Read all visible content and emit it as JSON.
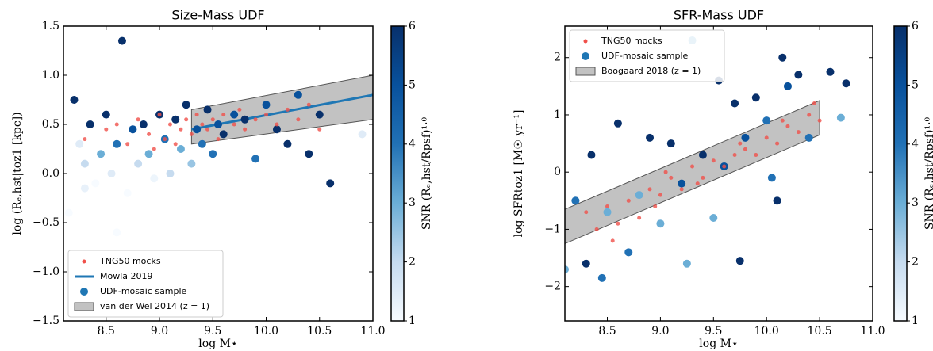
{
  "chart_data": [
    {
      "type": "scatter",
      "title": "Size-Mass UDF",
      "x_label": "log M⋆",
      "y_label": "log (Rₑ,hst|toz1 [kpc])",
      "xlim": [
        8.1,
        11.0
      ],
      "ylim": [
        -1.5,
        1.5
      ],
      "xticks": [
        8.5,
        {
          "value": 9,
          "label": "9.0"
        },
        9.5,
        {
          "value": 10,
          "label": "10.0"
        },
        10.5,
        {
          "value": 11,
          "label": "11.0"
        }
      ],
      "yticks": [
        {
          "value": -1.5,
          "label": "−1.5"
        },
        {
          "value": -1,
          "label": "−1.0"
        },
        {
          "value": -0.5,
          "label": "−0.5"
        },
        {
          "value": 0,
          "label": "0.0"
        },
        0.5,
        {
          "value": 1,
          "label": "1.0"
        },
        1.5
      ],
      "legend": "lower left",
      "series": [
        {
          "name": "UDF-mosaic sample",
          "color": "#1f77b4",
          "x": [
            8.15,
            8.2,
            8.25,
            8.3,
            8.35,
            8.4,
            8.45,
            8.5,
            8.55,
            8.6,
            8.65,
            8.7,
            8.75,
            8.8,
            8.85,
            8.9,
            8.95,
            9.0,
            9.05,
            9.1,
            9.15,
            9.2,
            9.25,
            9.3,
            9.35,
            9.4,
            9.45,
            9.5,
            9.55,
            9.6,
            9.7,
            9.8,
            9.9,
            10.0,
            10.1,
            10.2,
            10.3,
            10.4,
            10.5,
            10.6,
            10.9,
            8.6,
            8.3
          ],
          "values": [
            -0.4,
            0.75,
            0.3,
            0.1,
            0.5,
            -0.1,
            0.2,
            0.6,
            0.0,
            0.3,
            1.35,
            -0.2,
            0.45,
            0.1,
            0.5,
            0.2,
            -0.05,
            0.6,
            0.35,
            0.0,
            0.55,
            0.25,
            0.7,
            0.1,
            0.45,
            0.3,
            0.65,
            0.2,
            0.5,
            0.4,
            0.6,
            0.55,
            0.15,
            0.7,
            0.45,
            0.3,
            0.8,
            0.2,
            0.6,
            -0.1,
            0.4,
            -0.6,
            -0.15
          ],
          "snr": [
            1,
            6,
            1.5,
            2,
            6,
            1,
            3,
            6,
            1.5,
            4,
            6,
            1,
            5,
            2,
            6,
            3,
            1.2,
            6,
            4,
            2,
            6,
            3,
            6,
            2.5,
            5,
            4,
            6,
            4,
            5,
            6,
            5,
            6,
            4,
            5,
            6,
            6,
            5,
            6,
            6,
            6,
            1.5,
            1,
            1.3
          ]
        },
        {
          "name": "TNG50 mocks",
          "color": "#f0504a",
          "x": [
            8.3,
            8.5,
            8.6,
            8.7,
            8.8,
            8.9,
            9.0,
            9.05,
            9.1,
            9.2,
            9.25,
            9.3,
            9.35,
            9.4,
            9.45,
            9.5,
            9.55,
            9.6,
            9.7,
            9.75,
            9.8,
            9.9,
            10.0,
            10.1,
            10.2,
            10.3,
            10.4,
            10.5,
            9.15,
            8.95
          ],
          "values": [
            0.35,
            0.45,
            0.5,
            0.3,
            0.55,
            0.4,
            0.6,
            0.35,
            0.5,
            0.45,
            0.55,
            0.4,
            0.6,
            0.5,
            0.45,
            0.55,
            0.35,
            0.6,
            0.5,
            0.65,
            0.45,
            0.55,
            0.6,
            0.5,
            0.65,
            0.55,
            0.7,
            0.45,
            0.3,
            0.25
          ]
        }
      ],
      "line": {
        "name": "Mowla 2019",
        "color": "#1f77b4",
        "x": [
          9.3,
          11.0
        ],
        "values": [
          0.45,
          0.8
        ]
      },
      "band": {
        "name": "van der Wel 2014 (z = 1)",
        "color": "#999999",
        "x": [
          9.3,
          11.0
        ],
        "lower": [
          0.3,
          0.55
        ],
        "upper": [
          0.65,
          1.0
        ]
      },
      "colorbar": {
        "label": "SNR (Rₑ,hst/Rpsf)¹·⁰",
        "lim": [
          1,
          6
        ],
        "ticks": [
          1,
          2,
          3,
          4,
          5,
          6
        ]
      }
    },
    {
      "type": "scatter",
      "title": "SFR-Mass UDF",
      "x_label": "log M⋆",
      "y_label": "log SFRtoz1 [M☉ yr⁻¹]",
      "xlim": [
        8.1,
        11.0
      ],
      "ylim": [
        -2.6,
        2.55
      ],
      "xticks": [
        8.5,
        {
          "value": 9,
          "label": "9.0"
        },
        9.5,
        {
          "value": 10,
          "label": "10.0"
        },
        10.5,
        {
          "value": 11,
          "label": "11.0"
        }
      ],
      "yticks": [
        {
          "value": -2,
          "label": "−2"
        },
        {
          "value": -1,
          "label": "−1"
        },
        0,
        1,
        2
      ],
      "legend": "upper left",
      "series": [
        {
          "name": "UDF-mosaic sample",
          "color": "#1f77b4",
          "x": [
            8.1,
            8.2,
            8.3,
            8.35,
            8.45,
            8.5,
            8.6,
            8.7,
            8.8,
            8.9,
            9.0,
            9.1,
            9.2,
            9.25,
            9.3,
            9.4,
            9.5,
            9.55,
            9.6,
            9.7,
            9.75,
            9.8,
            9.9,
            10.0,
            10.05,
            10.1,
            10.15,
            10.2,
            10.3,
            10.4,
            10.6,
            10.7,
            10.75
          ],
          "values": [
            -1.7,
            -0.5,
            -1.6,
            0.3,
            -1.85,
            -0.7,
            0.85,
            -1.4,
            -0.4,
            0.6,
            -0.9,
            0.5,
            -0.2,
            -1.6,
            2.3,
            0.3,
            -0.8,
            1.6,
            0.1,
            1.2,
            -1.55,
            0.6,
            1.3,
            0.9,
            -0.1,
            -0.5,
            2.0,
            1.5,
            1.7,
            0.6,
            1.75,
            0.95,
            1.55
          ],
          "snr": [
            3,
            4,
            6,
            6,
            4,
            3,
            6,
            4,
            3,
            6,
            3,
            6,
            5,
            3,
            3,
            6,
            3,
            6,
            5,
            6,
            6,
            5,
            6,
            4,
            4,
            6,
            6,
            5,
            6,
            4,
            6,
            3,
            6
          ]
        },
        {
          "name": "TNG50 mocks",
          "color": "#f0504a",
          "x": [
            8.3,
            8.4,
            8.5,
            8.6,
            8.7,
            8.8,
            8.9,
            9.0,
            9.1,
            9.2,
            9.3,
            9.4,
            9.5,
            9.6,
            9.7,
            9.8,
            9.9,
            10.0,
            10.1,
            10.2,
            10.3,
            10.4,
            10.5,
            8.55,
            8.95,
            9.35,
            9.75,
            10.15,
            10.45,
            9.05
          ],
          "values": [
            -0.7,
            -1.0,
            -0.6,
            -0.9,
            -0.5,
            -0.8,
            -0.3,
            -0.4,
            -0.1,
            -0.3,
            0.1,
            -0.1,
            0.2,
            0.1,
            0.3,
            0.4,
            0.3,
            0.6,
            0.5,
            0.8,
            0.7,
            1.0,
            0.9,
            -1.2,
            -0.6,
            -0.2,
            0.5,
            0.9,
            1.2,
            0.0
          ]
        }
      ],
      "band": {
        "name": "Boogaard 2018 (z = 1)",
        "color": "#999999",
        "x": [
          8.1,
          10.5
        ],
        "lower": [
          -1.25,
          0.65
        ],
        "upper": [
          -0.65,
          1.25
        ]
      },
      "colorbar": {
        "label": "SNR (Rₑ,hst/Rpsf)¹·⁰",
        "lim": [
          1,
          6
        ],
        "ticks": [
          1,
          2,
          3,
          4,
          5,
          6
        ]
      }
    }
  ]
}
